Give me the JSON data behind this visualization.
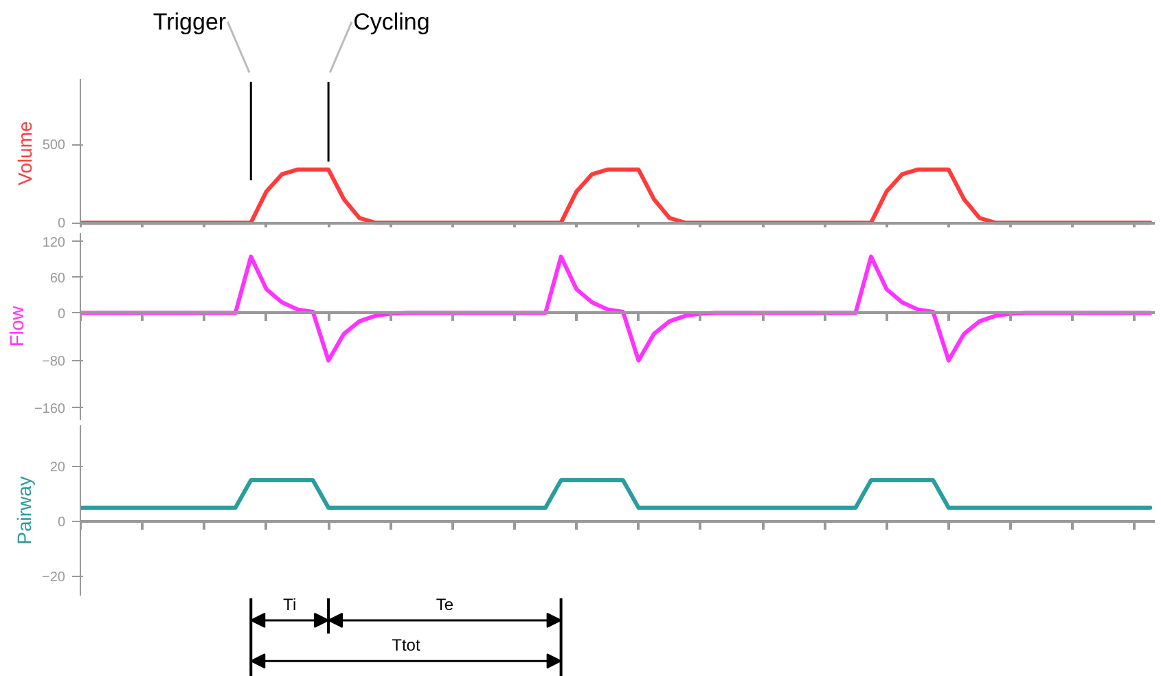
{
  "chart_data": [
    {
      "type": "line",
      "annotations": [
        "Trigger",
        "Cycling"
      ],
      "ylabel": "Volume",
      "tick_labels": "y",
      "ylim": [
        -30,
        920
      ],
      "yticks": [
        0,
        500
      ],
      "categories": [
        null,
        null,
        null,
        null,
        null,
        null,
        null,
        null,
        null,
        null,
        null,
        null,
        null,
        null,
        null,
        null,
        null,
        null,
        null,
        null,
        null,
        null,
        null,
        null,
        null,
        null,
        null,
        null,
        null,
        null,
        null,
        null,
        null,
        null,
        null,
        null,
        null,
        null,
        null,
        null,
        null,
        null,
        null,
        null,
        null,
        null,
        null,
        null,
        null,
        null,
        null,
        null,
        null,
        null,
        null,
        null,
        null,
        null,
        null,
        null,
        null,
        null,
        null,
        null,
        null,
        null,
        null,
        null,
        null,
        null
      ],
      "series": [
        {
          "color": "#ff3b3b",
          "values": [
            0,
            0,
            0,
            0,
            0,
            0,
            0,
            0,
            0,
            0,
            0,
            0,
            200,
            310,
            340,
            340,
            340,
            150,
            30,
            0,
            0,
            0,
            0,
            0,
            0,
            0,
            0,
            0,
            0,
            0,
            0,
            0,
            200,
            310,
            340,
            340,
            340,
            150,
            30,
            0,
            0,
            0,
            0,
            0,
            0,
            0,
            0,
            0,
            0,
            0,
            0,
            0,
            200,
            310,
            340,
            340,
            340,
            150,
            30,
            0,
            0,
            0,
            0,
            0,
            0,
            0,
            0,
            0,
            0,
            0
          ]
        }
      ]
    },
    {
      "type": "line",
      "ylabel": "Flow",
      "tick_labels": "y",
      "ylim": [
        -180,
        135
      ],
      "yticks": [
        -160,
        -80,
        0,
        60,
        120
      ],
      "categories": [
        null,
        null,
        null,
        null,
        null,
        null,
        null,
        null,
        null,
        null,
        null,
        null,
        null,
        null,
        null,
        null,
        null,
        null,
        null,
        null,
        null,
        null,
        null,
        null,
        null,
        null,
        null,
        null,
        null,
        null,
        null,
        null,
        null,
        null,
        null,
        null,
        null,
        null,
        null,
        null,
        null,
        null,
        null,
        null,
        null,
        null,
        null,
        null,
        null,
        null,
        null,
        null,
        null,
        null,
        null,
        null,
        null,
        null,
        null,
        null,
        null,
        null,
        null,
        null,
        null,
        null,
        null,
        null,
        null,
        null
      ],
      "series": [
        {
          "color": "#ff33ff",
          "values": [
            0,
            0,
            0,
            0,
            0,
            0,
            0,
            0,
            0,
            0,
            0,
            95,
            40,
            18,
            6,
            2,
            -80,
            -35,
            -14,
            -5,
            -1,
            0,
            0,
            0,
            0,
            0,
            0,
            0,
            0,
            0,
            0,
            95,
            40,
            18,
            6,
            2,
            -80,
            -35,
            -14,
            -5,
            -1,
            0,
            0,
            0,
            0,
            0,
            0,
            0,
            0,
            0,
            0,
            95,
            40,
            18,
            6,
            2,
            -80,
            -35,
            -14,
            -5,
            -1,
            0,
            0,
            0,
            0,
            0,
            0,
            0,
            0,
            0
          ]
        }
      ]
    },
    {
      "type": "line",
      "annotations": [
        "Ti",
        "Te",
        "Ttot"
      ],
      "ylabel": "Pairway",
      "tick_labels": "y",
      "ylim": [
        -27,
        35
      ],
      "yticks": [
        -20,
        0,
        20
      ],
      "categories": [
        null,
        null,
        null,
        null,
        null,
        null,
        null,
        null,
        null,
        null,
        null,
        null,
        null,
        null,
        null,
        null,
        null,
        null,
        null,
        null,
        null,
        null,
        null,
        null,
        null,
        null,
        null,
        null,
        null,
        null,
        null,
        null,
        null,
        null,
        null,
        null,
        null,
        null,
        null,
        null,
        null,
        null,
        null,
        null,
        null,
        null,
        null,
        null,
        null,
        null,
        null,
        null,
        null,
        null,
        null,
        null,
        null,
        null,
        null,
        null,
        null,
        null,
        null,
        null,
        null,
        null,
        null,
        null,
        null,
        null
      ],
      "series": [
        {
          "color": "#2a9d9d",
          "values": [
            5,
            5,
            5,
            5,
            5,
            5,
            5,
            5,
            5,
            5,
            5,
            15,
            15,
            15,
            15,
            15,
            5,
            5,
            5,
            5,
            5,
            5,
            5,
            5,
            5,
            5,
            5,
            5,
            5,
            5,
            5,
            15,
            15,
            15,
            15,
            15,
            5,
            5,
            5,
            5,
            5,
            5,
            5,
            5,
            5,
            5,
            5,
            5,
            5,
            5,
            5,
            15,
            15,
            15,
            15,
            15,
            5,
            5,
            5,
            5,
            5,
            5,
            5,
            5,
            5,
            5,
            5,
            5,
            5,
            5
          ]
        }
      ]
    }
  ]
}
